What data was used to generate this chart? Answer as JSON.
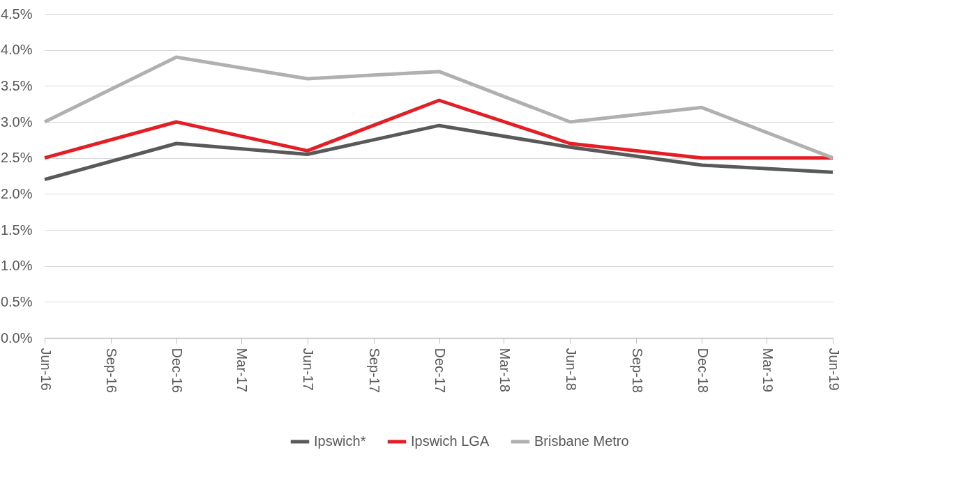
{
  "chart_data": {
    "type": "line",
    "x": [
      "2016-06",
      "2016-12",
      "2017-06",
      "2017-12",
      "2018-06",
      "2018-12",
      "2019-06"
    ],
    "series": [
      {
        "name": "Ipswich*",
        "color": "#595959",
        "values": [
          2.2,
          2.7,
          2.55,
          2.95,
          2.65,
          2.4,
          2.3
        ]
      },
      {
        "name": "Ipswich LGA",
        "color": "#e31e24",
        "values": [
          2.5,
          3.0,
          2.6,
          3.3,
          2.7,
          2.5,
          2.5
        ]
      },
      {
        "name": "Brisbane Metro",
        "color": "#b0b0b0",
        "values": [
          3.0,
          3.9,
          3.6,
          3.7,
          3.0,
          3.2,
          2.5
        ]
      }
    ],
    "xlim": [
      "2016-06",
      "2019-06"
    ],
    "xticks": [
      {
        "value": "2016-06",
        "label": "Jun-16"
      },
      {
        "value": "2016-09",
        "label": "Sep-16"
      },
      {
        "value": "2016-12",
        "label": "Dec-16"
      },
      {
        "value": "2017-03",
        "label": "Mar-17"
      },
      {
        "value": "2017-06",
        "label": "Jun-17"
      },
      {
        "value": "2017-09",
        "label": "Sep-17"
      },
      {
        "value": "2017-12",
        "label": "Dec-17"
      },
      {
        "value": "2018-03",
        "label": "Mar-18"
      },
      {
        "value": "2018-06",
        "label": "Jun-18"
      },
      {
        "value": "2018-09",
        "label": "Sep-18"
      },
      {
        "value": "2018-12",
        "label": "Dec-18"
      },
      {
        "value": "2019-03",
        "label": "Mar-19"
      },
      {
        "value": "2019-06",
        "label": "Jun-19"
      }
    ],
    "ylim": [
      0,
      4.5
    ],
    "yticks": [
      {
        "value": 0,
        "label": "0.0%"
      },
      {
        "value": 0.5,
        "label": "0.5%"
      },
      {
        "value": 1,
        "label": "1.0%"
      },
      {
        "value": 1.5,
        "label": "1.5%"
      },
      {
        "value": 2,
        "label": "2.0%"
      },
      {
        "value": 2.5,
        "label": "2.5%"
      },
      {
        "value": 3,
        "label": "3.0%"
      },
      {
        "value": 3.5,
        "label": "3.5%"
      },
      {
        "value": 4,
        "label": "4.0%"
      },
      {
        "value": 4.5,
        "label": "4.5%"
      }
    ],
    "grid": "y",
    "legend": "bottom",
    "marker": "none",
    "line_style": "solid"
  }
}
